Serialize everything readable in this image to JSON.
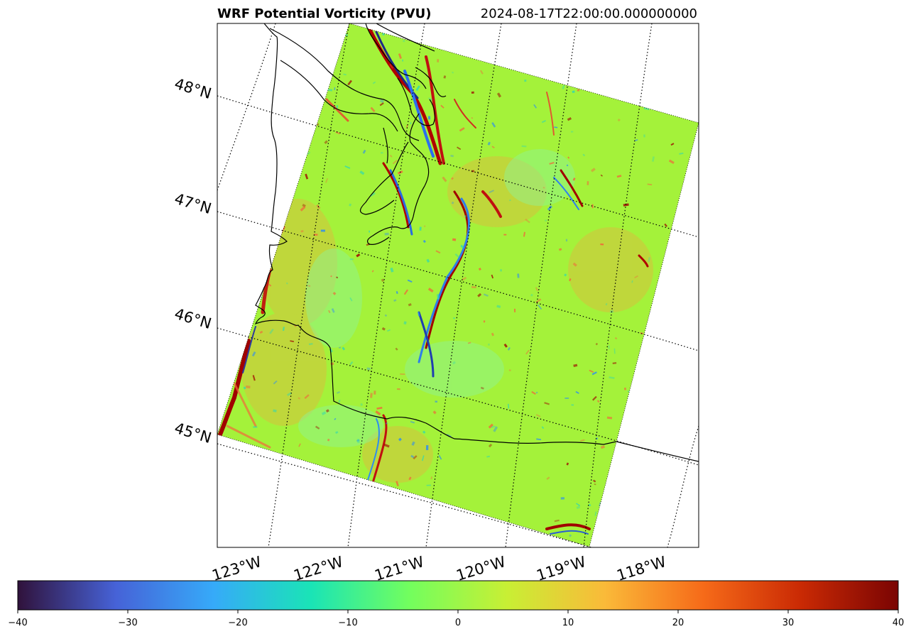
{
  "title": {
    "left": "WRF Potential Vorticity (PVU)",
    "right": "2024-08-17T22:00:00.000000000"
  },
  "map": {
    "lat_labels": [
      "48°N",
      "47°N",
      "46°N",
      "45°N"
    ],
    "lon_labels": [
      "123°W",
      "122°W",
      "121°W",
      "120°W",
      "119°W",
      "118°W"
    ],
    "gridlines": "dotted",
    "coastline_color": "#000000"
  },
  "colorbar": {
    "colormap": "turbo",
    "min": -40,
    "max": 40,
    "ticks": [
      "−40",
      "−30",
      "−20",
      "−10",
      "0",
      "10",
      "20",
      "30",
      "40"
    ],
    "colors": [
      "#30123b",
      "#4662d7",
      "#36aaf9",
      "#1ae4b6",
      "#72fe5e",
      "#c8ef34",
      "#faba39",
      "#f66b19",
      "#ca2a04",
      "#7a0403"
    ]
  },
  "field_colors": {
    "background": "#a4f23a",
    "high": "#a00000",
    "mid_high": "#f2643a",
    "low": "#2e8df0",
    "very_low": "#1c2a7a",
    "teal": "#30d8b0"
  }
}
